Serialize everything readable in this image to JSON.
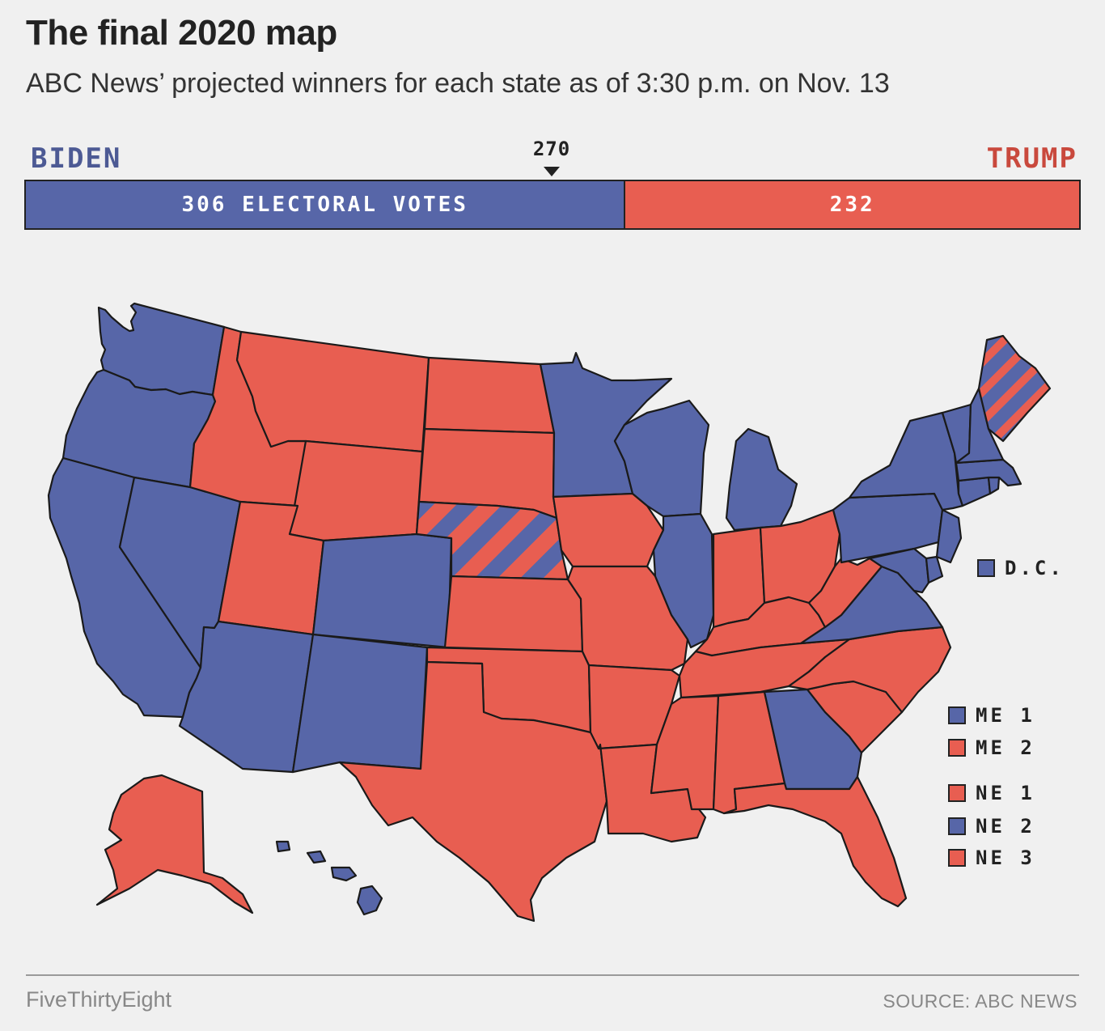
{
  "header": {
    "title": "The final 2020 map",
    "subtitle": "ABC News’ projected winners for each state as of 3:30 p.m. on Nov. 13"
  },
  "bar": {
    "biden_label": "BIDEN",
    "trump_label": "TRUMP",
    "threshold_label": "270",
    "biden_text": "306 ELECTORAL VOTES",
    "trump_text": "232",
    "biden_votes": 306,
    "trump_votes": 232
  },
  "colors": {
    "biden": "#5766a8",
    "trump": "#e85e51",
    "biden_label": "#4d5a94",
    "trump_label": "#c9493d",
    "outline": "#1a1a1a",
    "background": "#f0f0f0"
  },
  "legend": {
    "dc": {
      "label": "D.C.",
      "winner": "biden"
    },
    "districts": [
      {
        "label": "ME 1",
        "winner": "biden"
      },
      {
        "label": "ME 2",
        "winner": "trump"
      },
      {
        "label": "NE 1",
        "winner": "trump"
      },
      {
        "label": "NE 2",
        "winner": "biden"
      },
      {
        "label": "NE 3",
        "winner": "trump"
      }
    ]
  },
  "map": {
    "split_states": [
      "NE",
      "ME"
    ],
    "states": {
      "WA": "biden",
      "OR": "biden",
      "CA": "biden",
      "NV": "biden",
      "AZ": "biden",
      "CO": "biden",
      "NM": "biden",
      "MN": "biden",
      "WI": "biden",
      "MI": "biden",
      "IL": "biden",
      "PA": "biden",
      "NY": "biden",
      "VA": "biden",
      "GA": "biden",
      "HI": "biden",
      "VT": "biden",
      "NH": "biden",
      "MA": "biden",
      "CT": "biden",
      "RI": "biden",
      "NJ": "biden",
      "DE": "biden",
      "MD": "biden",
      "ME": "biden",
      "NE": "trump",
      "ID": "trump",
      "MT": "trump",
      "WY": "trump",
      "UT": "trump",
      "ND": "trump",
      "SD": "trump",
      "KS": "trump",
      "OK": "trump",
      "TX": "trump",
      "IA": "trump",
      "MO": "trump",
      "AR": "trump",
      "LA": "trump",
      "MS": "trump",
      "AL": "trump",
      "TN": "trump",
      "KY": "trump",
      "IN": "trump",
      "OH": "trump",
      "WV": "trump",
      "NC": "trump",
      "SC": "trump",
      "FL": "trump",
      "AK": "trump"
    }
  },
  "footer": {
    "brand": "FiveThirtyEight",
    "source": "SOURCE: ABC NEWS"
  }
}
